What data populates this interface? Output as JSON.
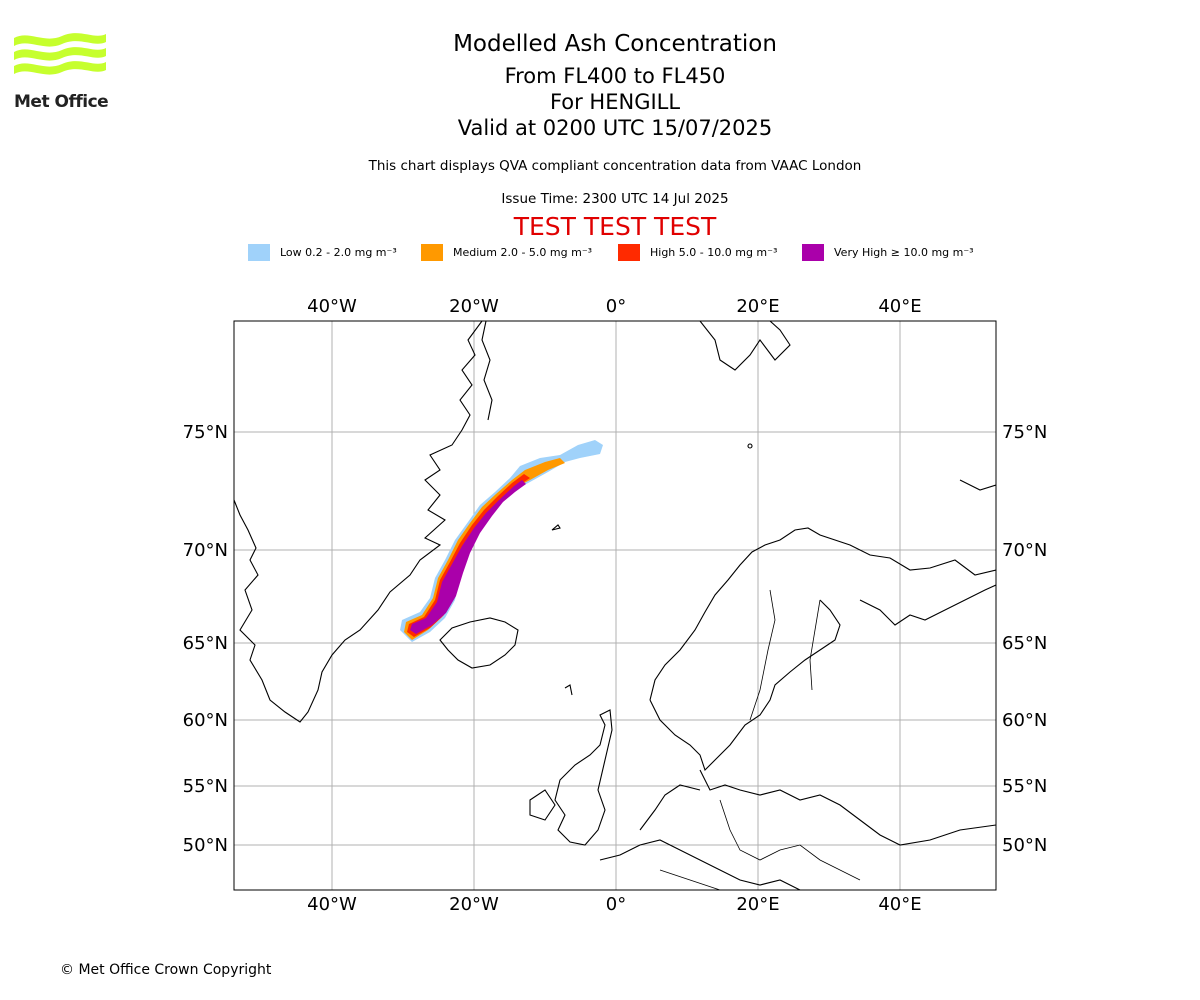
{
  "logo": {
    "name": "Met Office"
  },
  "title": {
    "main": "Modelled Ash Concentration",
    "levels": "From FL400 to FL450",
    "location": "For HENGILL",
    "valid": "Valid at 0200 UTC 15/07/2025",
    "note": "This chart displays QVA compliant concentration data from VAAC London",
    "issue": "Issue Time: 2300 UTC 14 Jul 2025",
    "test_banner": "TEST TEST TEST"
  },
  "legend": [
    {
      "label": "Low 0.2 - 2.0 mg m⁻³",
      "color": "#a0d2fa"
    },
    {
      "label": "Medium 2.0 - 5.0 mg m⁻³",
      "color": "#ff9900"
    },
    {
      "label": "High 5.0 - 10.0 mg m⁻³",
      "color": "#ff2a00"
    },
    {
      "label": "Very High ≥ 10.0 mg m⁻³",
      "color": "#aa00aa"
    }
  ],
  "axes": {
    "lon_ticks": [
      "40°W",
      "20°W",
      "0°",
      "20°E",
      "40°E"
    ],
    "lat_ticks": [
      "75°N",
      "70°N",
      "65°N",
      "60°N",
      "55°N",
      "50°N"
    ]
  },
  "copyright": "© Met Office Crown Copyright"
}
